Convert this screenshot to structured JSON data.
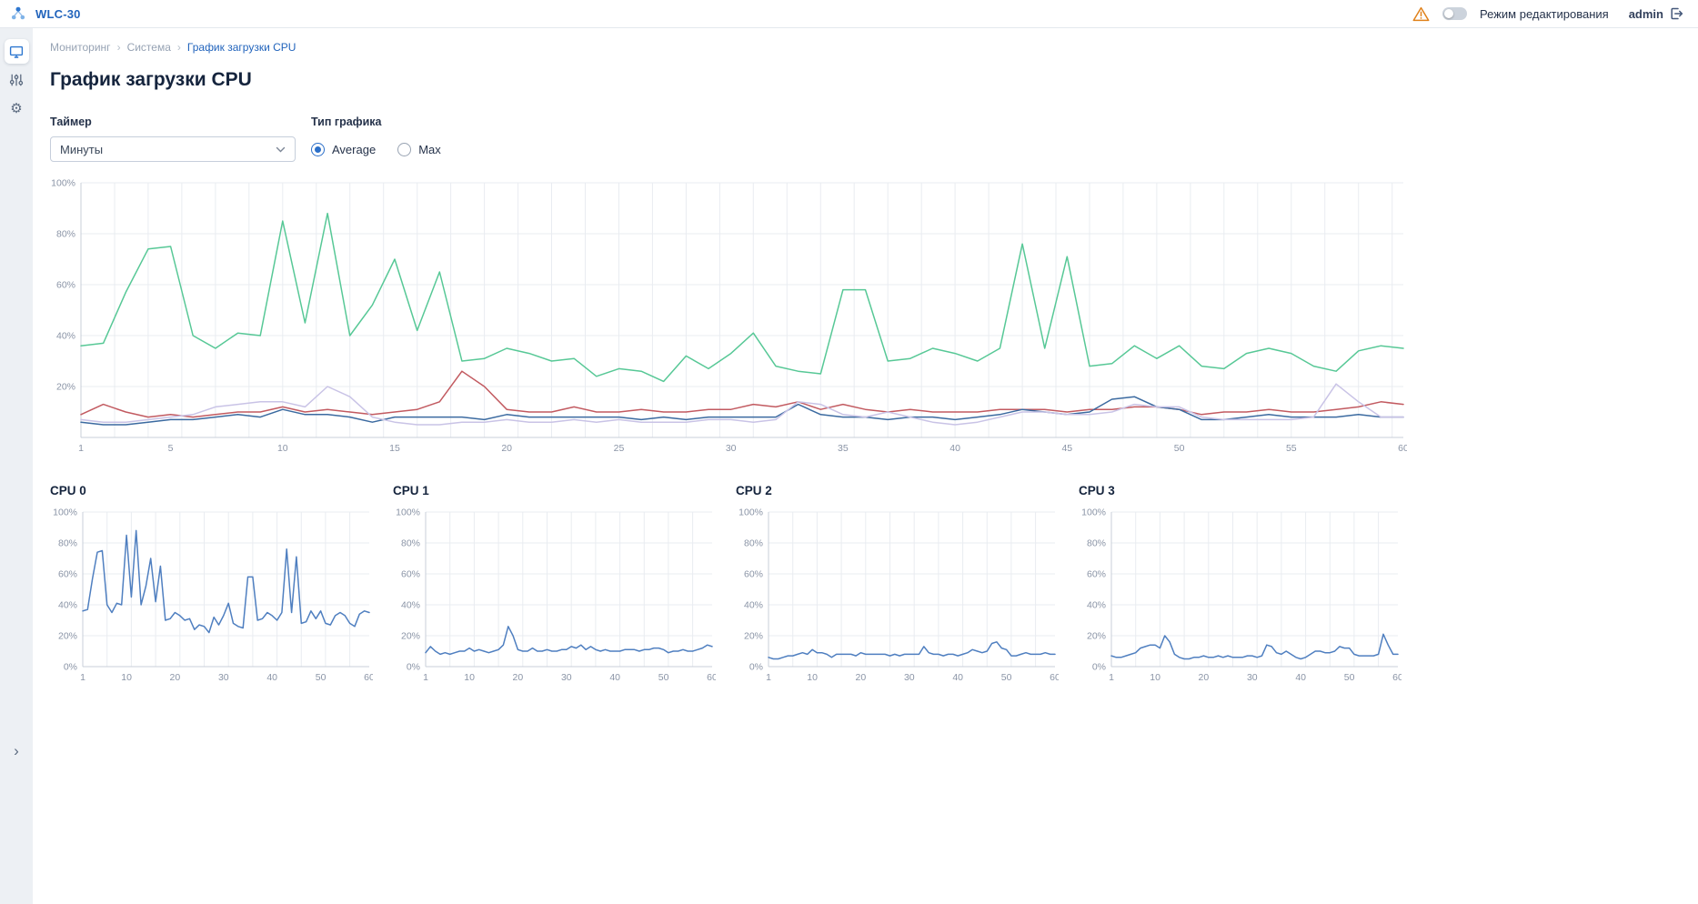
{
  "theme": {
    "accent": "#2e77d0",
    "warning": "#e0821c",
    "link": "#2264bc"
  },
  "header": {
    "app_title": "WLC-30",
    "edit_mode_label": "Режим редактирования",
    "user": "admin",
    "icons": [
      "network-logo-icon",
      "warning-icon",
      "logout-icon"
    ]
  },
  "sidebar": {
    "items": [
      {
        "id": "monitoring",
        "icon": "monitor-icon",
        "active": true
      },
      {
        "id": "statistics",
        "icon": "sliders-icon",
        "active": false
      },
      {
        "id": "settings",
        "icon": "gear-icon",
        "active": false
      }
    ],
    "expand_icon": "chevron-right-icon",
    "gear_glyph": "⚙",
    "expand_glyph": "›"
  },
  "breadcrumb": {
    "separator": "›",
    "items": [
      {
        "label": "Мониторинг"
      },
      {
        "label": "Система"
      },
      {
        "label": "График загрузки CPU"
      }
    ]
  },
  "page": {
    "title": "График загрузки CPU"
  },
  "controls": {
    "timer_label": "Таймер",
    "timer_value": "Минуты",
    "chart_type_label": "Тип графика",
    "selected_option": "Average",
    "options": [
      {
        "label": "Average",
        "selected": true
      },
      {
        "label": "Max",
        "selected": false
      }
    ]
  },
  "chart_data": [
    {
      "id": "cpu-all",
      "type": "line",
      "title": "",
      "xlim": [
        1,
        60
      ],
      "ylim": [
        0,
        100
      ],
      "xticks": [
        1,
        5,
        10,
        15,
        20,
        25,
        30,
        35,
        40,
        45,
        50,
        55,
        60
      ],
      "yticks": [
        20,
        40,
        60,
        80,
        100
      ],
      "ygrid": [
        20,
        40,
        60,
        80,
        100
      ],
      "grid": true,
      "legend": "none",
      "series": [
        {
          "name": "CPU 0",
          "color": "#57c896",
          "values": [
            36,
            37,
            57,
            74,
            75,
            40,
            35,
            41,
            40,
            85,
            45,
            88,
            40,
            52,
            70,
            42,
            65,
            30,
            31,
            35,
            33,
            30,
            31,
            24,
            27,
            26,
            22,
            32,
            27,
            33,
            41,
            28,
            26,
            25,
            58,
            58,
            30,
            31,
            35,
            33,
            30,
            35,
            76,
            35,
            71,
            28,
            29,
            36,
            31,
            36,
            28,
            27,
            33,
            35,
            33,
            28,
            26,
            34,
            36,
            35
          ]
        },
        {
          "name": "CPU 1",
          "color": "#c25a60",
          "values": [
            9,
            13,
            10,
            8,
            9,
            8,
            9,
            10,
            10,
            12,
            10,
            11,
            10,
            9,
            10,
            11,
            14,
            26,
            20,
            11,
            10,
            10,
            12,
            10,
            10,
            11,
            10,
            10,
            11,
            11,
            13,
            12,
            14,
            11,
            13,
            11,
            10,
            11,
            10,
            10,
            10,
            11,
            11,
            11,
            10,
            11,
            11,
            12,
            12,
            11,
            9,
            10,
            10,
            11,
            10,
            10,
            11,
            12,
            14,
            13
          ]
        },
        {
          "name": "CPU 2",
          "color": "#3b6aa0",
          "values": [
            6,
            5,
            5,
            6,
            7,
            7,
            8,
            9,
            8,
            11,
            9,
            9,
            8,
            6,
            8,
            8,
            8,
            8,
            7,
            9,
            8,
            8,
            8,
            8,
            8,
            7,
            8,
            7,
            8,
            8,
            8,
            8,
            13,
            9,
            8,
            8,
            7,
            8,
            8,
            7,
            8,
            9,
            11,
            10,
            9,
            10,
            15,
            16,
            12,
            11,
            7,
            7,
            8,
            9,
            8,
            8,
            8,
            9,
            8,
            8
          ]
        },
        {
          "name": "CPU 3",
          "color": "#c9c3e6",
          "values": [
            7,
            6,
            6,
            7,
            8,
            9,
            12,
            13,
            14,
            14,
            12,
            20,
            16,
            8,
            6,
            5,
            5,
            6,
            6,
            7,
            6,
            6,
            7,
            6,
            7,
            6,
            6,
            6,
            7,
            7,
            6,
            7,
            14,
            13,
            9,
            8,
            10,
            8,
            6,
            5,
            6,
            8,
            10,
            10,
            9,
            9,
            10,
            13,
            12,
            12,
            8,
            7,
            7,
            7,
            7,
            8,
            21,
            14,
            8,
            8
          ]
        }
      ]
    },
    {
      "id": "cpu0",
      "type": "line",
      "title": "CPU 0",
      "xlim": [
        1,
        60
      ],
      "ylim": [
        0,
        100
      ],
      "xticks": [
        1,
        10,
        20,
        30,
        40,
        50,
        60
      ],
      "yticks": [
        0,
        20,
        40,
        60,
        80,
        100
      ],
      "ygrid": [
        20,
        40,
        60,
        80,
        100
      ],
      "grid": true,
      "legend": "none",
      "series": [
        {
          "name": "CPU 0",
          "color": "#4f7fc0",
          "values": [
            36,
            37,
            57,
            74,
            75,
            40,
            35,
            41,
            40,
            85,
            45,
            88,
            40,
            52,
            70,
            42,
            65,
            30,
            31,
            35,
            33,
            30,
            31,
            24,
            27,
            26,
            22,
            32,
            27,
            33,
            41,
            28,
            26,
            25,
            58,
            58,
            30,
            31,
            35,
            33,
            30,
            35,
            76,
            35,
            71,
            28,
            29,
            36,
            31,
            36,
            28,
            27,
            33,
            35,
            33,
            28,
            26,
            34,
            36,
            35
          ]
        }
      ]
    },
    {
      "id": "cpu1",
      "type": "line",
      "title": "CPU 1",
      "xlim": [
        1,
        60
      ],
      "ylim": [
        0,
        100
      ],
      "xticks": [
        1,
        10,
        20,
        30,
        40,
        50,
        60
      ],
      "yticks": [
        0,
        20,
        40,
        60,
        80,
        100
      ],
      "ygrid": [
        20,
        40,
        60,
        80,
        100
      ],
      "grid": true,
      "legend": "none",
      "series": [
        {
          "name": "CPU 1",
          "color": "#4f7fc0",
          "values": [
            9,
            13,
            10,
            8,
            9,
            8,
            9,
            10,
            10,
            12,
            10,
            11,
            10,
            9,
            10,
            11,
            14,
            26,
            20,
            11,
            10,
            10,
            12,
            10,
            10,
            11,
            10,
            10,
            11,
            11,
            13,
            12,
            14,
            11,
            13,
            11,
            10,
            11,
            10,
            10,
            10,
            11,
            11,
            11,
            10,
            11,
            11,
            12,
            12,
            11,
            9,
            10,
            10,
            11,
            10,
            10,
            11,
            12,
            14,
            13
          ]
        }
      ]
    },
    {
      "id": "cpu2",
      "type": "line",
      "title": "CPU 2",
      "xlim": [
        1,
        60
      ],
      "ylim": [
        0,
        100
      ],
      "xticks": [
        1,
        10,
        20,
        30,
        40,
        50,
        60
      ],
      "yticks": [
        0,
        20,
        40,
        60,
        80,
        100
      ],
      "ygrid": [
        20,
        40,
        60,
        80,
        100
      ],
      "grid": true,
      "legend": "none",
      "series": [
        {
          "name": "CPU 2",
          "color": "#4f7fc0",
          "values": [
            6,
            5,
            5,
            6,
            7,
            7,
            8,
            9,
            8,
            11,
            9,
            9,
            8,
            6,
            8,
            8,
            8,
            8,
            7,
            9,
            8,
            8,
            8,
            8,
            8,
            7,
            8,
            7,
            8,
            8,
            8,
            8,
            13,
            9,
            8,
            8,
            7,
            8,
            8,
            7,
            8,
            9,
            11,
            10,
            9,
            10,
            15,
            16,
            12,
            11,
            7,
            7,
            8,
            9,
            8,
            8,
            8,
            9,
            8,
            8
          ]
        }
      ]
    },
    {
      "id": "cpu3",
      "type": "line",
      "title": "CPU 3",
      "xlim": [
        1,
        60
      ],
      "ylim": [
        0,
        100
      ],
      "xticks": [
        1,
        10,
        20,
        30,
        40,
        50,
        60
      ],
      "yticks": [
        0,
        20,
        40,
        60,
        80,
        100
      ],
      "ygrid": [
        20,
        40,
        60,
        80,
        100
      ],
      "grid": true,
      "legend": "none",
      "series": [
        {
          "name": "CPU 3",
          "color": "#4f7fc0",
          "values": [
            7,
            6,
            6,
            7,
            8,
            9,
            12,
            13,
            14,
            14,
            12,
            20,
            16,
            8,
            6,
            5,
            5,
            6,
            6,
            7,
            6,
            6,
            7,
            6,
            7,
            6,
            6,
            6,
            7,
            7,
            6,
            7,
            14,
            13,
            9,
            8,
            10,
            8,
            6,
            5,
            6,
            8,
            10,
            10,
            9,
            9,
            10,
            13,
            12,
            12,
            8,
            7,
            7,
            7,
            7,
            8,
            21,
            14,
            8,
            8
          ]
        }
      ]
    }
  ]
}
